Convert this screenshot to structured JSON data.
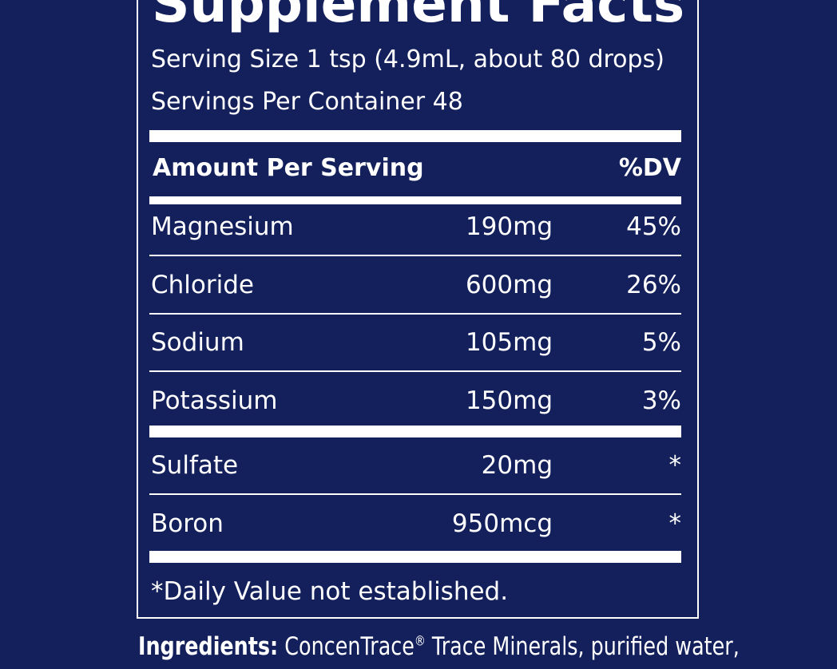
{
  "title": "Supplement Facts",
  "serving_size": "Serving Size 1 tsp (4.9mL, about 80 drops)",
  "servings_per_container": "Servings Per Container 48",
  "header": {
    "amount": "Amount Per Serving",
    "dv": "%DV"
  },
  "groups": [
    [
      [
        "Magnesium",
        "190mg",
        "45%"
      ],
      [
        "Chloride",
        "600mg",
        "26%"
      ],
      [
        "Sodium",
        "105mg",
        "5%"
      ],
      [
        "Potassium",
        "150mg",
        "3%"
      ]
    ],
    [
      [
        "Sulfate",
        "20mg",
        "*"
      ],
      [
        "Boron",
        "950mcg",
        "*"
      ]
    ]
  ],
  "footnote": "*Daily Value not established.",
  "ingredients": {
    "label": "Ingredients:",
    "brand": "ConcenTrace",
    "mark": "®",
    "rest": " Trace Minerals, purified water,"
  }
}
